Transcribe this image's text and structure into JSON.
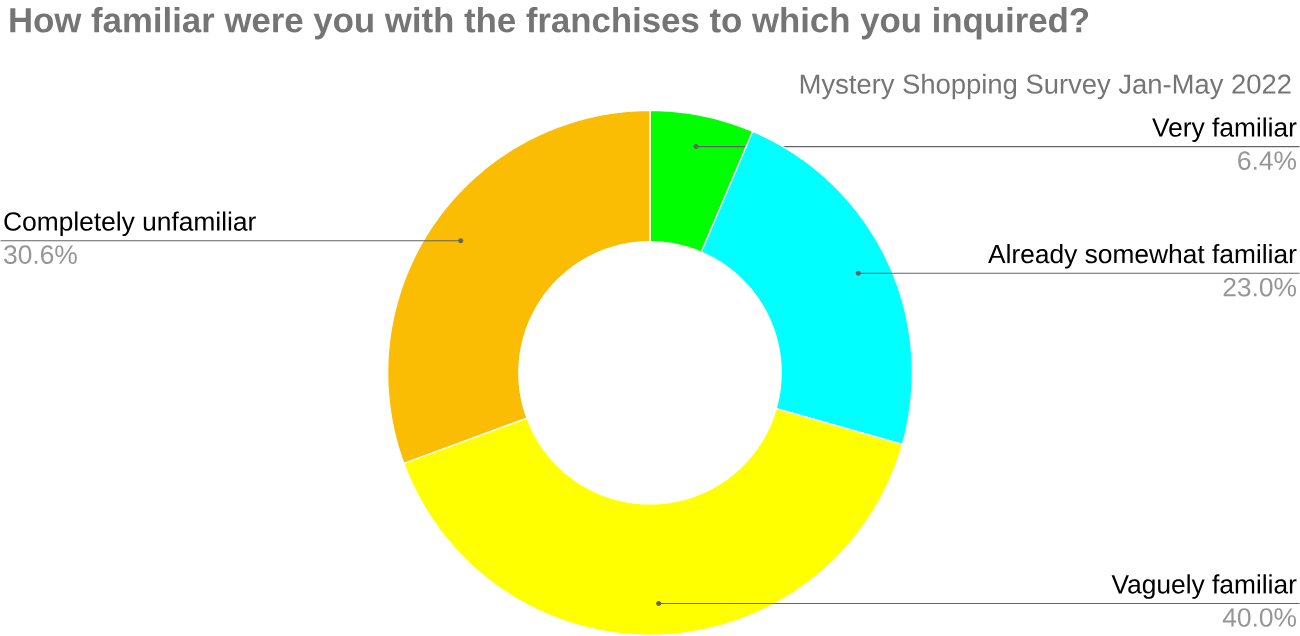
{
  "chart_data": {
    "type": "donut",
    "title": "How familiar were you with the franchises to which you inquired?",
    "subtitle": "Mystery Shopping Survey Jan-May 2022",
    "categories": [
      "Very familiar",
      "Already somewhat familiar",
      "Vaguely familiar",
      "Completely unfamiliar"
    ],
    "values": [
      6.4,
      23.0,
      40.0,
      30.6
    ],
    "value_labels": [
      "6.4%",
      "23.0%",
      "40.0%",
      "30.6%"
    ],
    "colors": [
      "#00ff00",
      "#00ffff",
      "#ffff00",
      "#fbbc04"
    ]
  }
}
